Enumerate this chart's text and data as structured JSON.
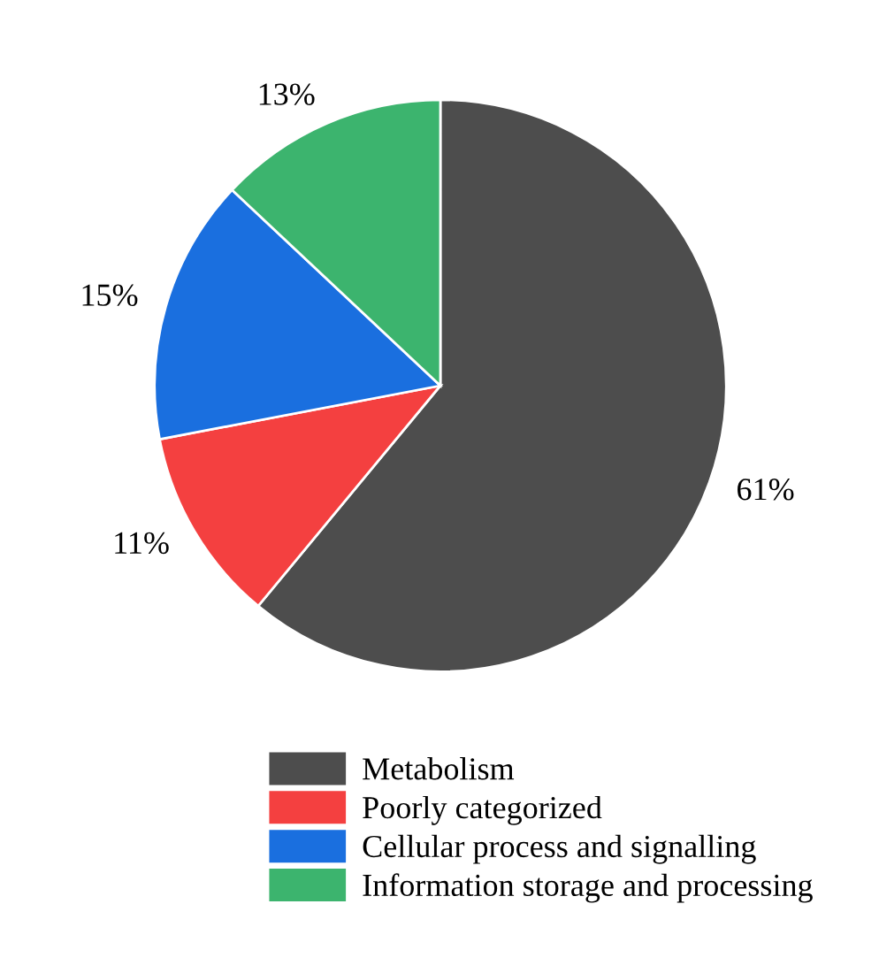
{
  "chart_data": {
    "type": "pie",
    "categories": [
      "Metabolism",
      "Poorly categorized",
      "Cellular process and signalling",
      "Information storage and processing"
    ],
    "values": [
      61,
      11,
      15,
      13
    ],
    "colors": [
      "#4d4d4d",
      "#f44040",
      "#1a6fdf",
      "#3cb46e"
    ],
    "value_labels": [
      "61%",
      "11%",
      "15%",
      "13%"
    ],
    "legend": "bottom"
  }
}
